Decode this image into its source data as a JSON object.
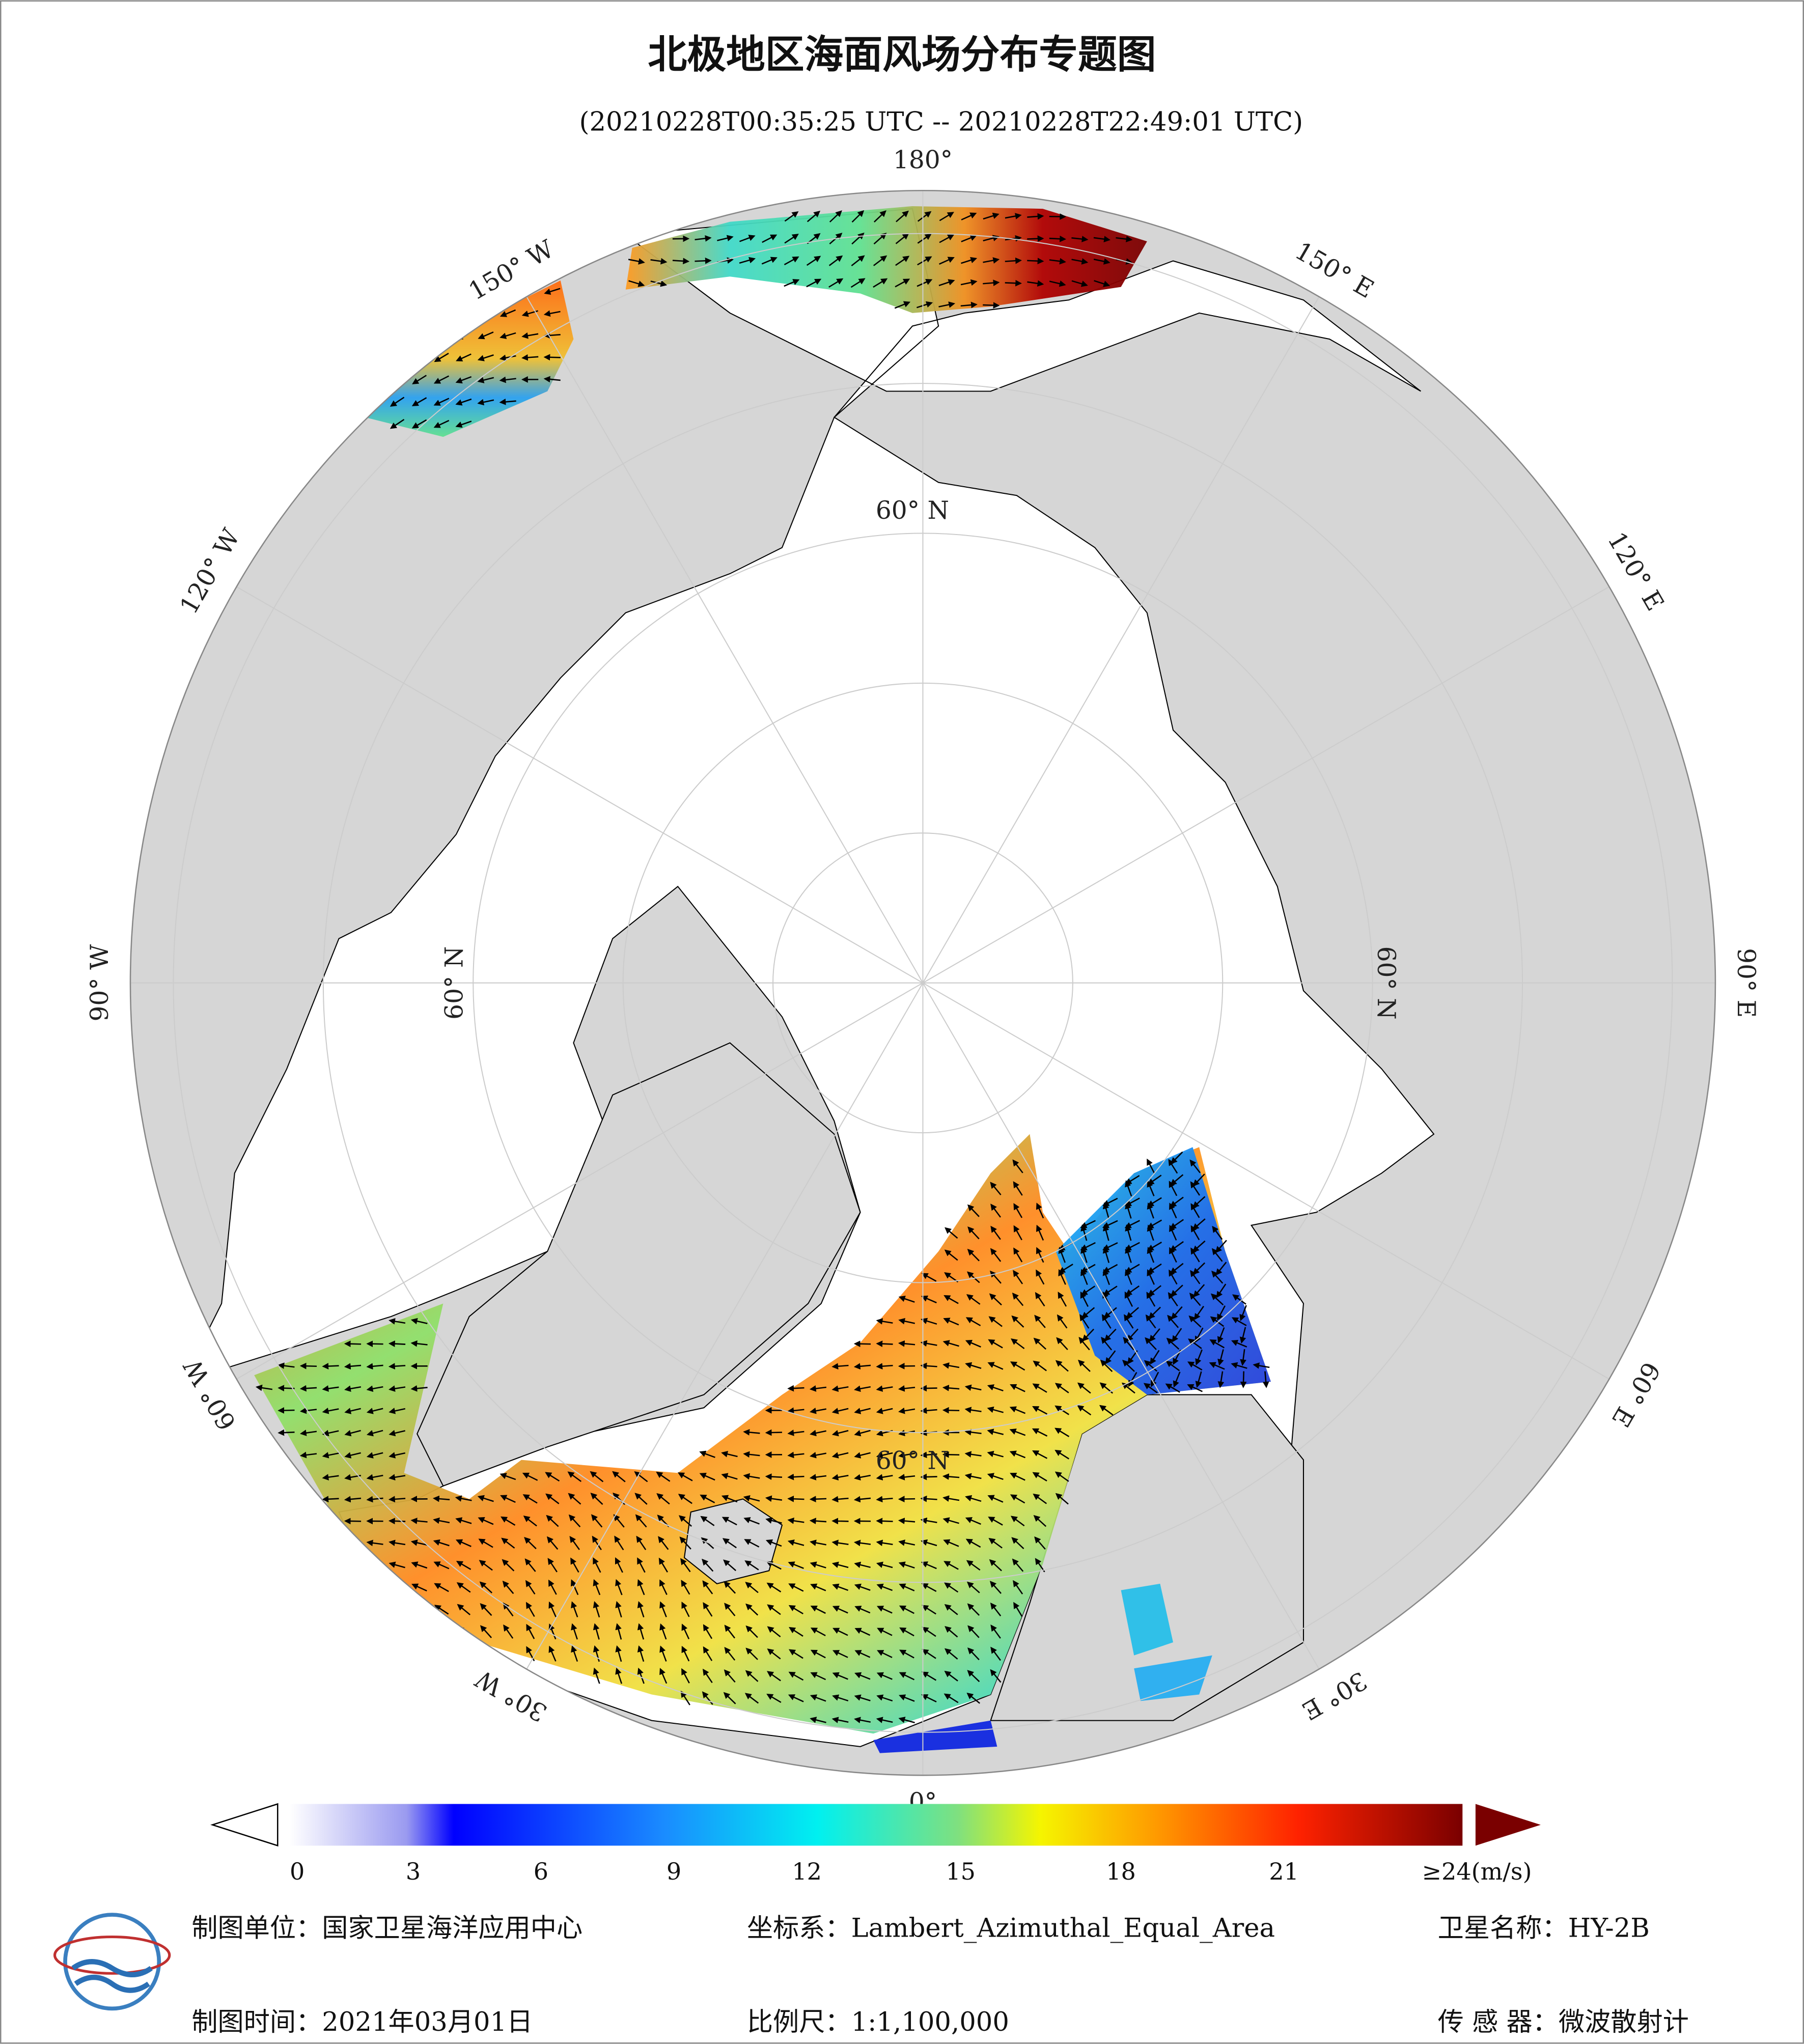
{
  "header": {
    "title": "北极地区海面风场分布专题图",
    "subtitle": "(20210228T00:35:25 UTC -- 20210228T22:49:01 UTC)"
  },
  "graticule": {
    "longitude_labels": [
      "180°",
      "150° E",
      "120° E",
      "90° E",
      "60° E",
      "30° E",
      "0°",
      "30° W",
      "60° W",
      "90° W",
      "120° W",
      "150° W"
    ],
    "latitude_label": "60° N"
  },
  "colorbar": {
    "ticks": [
      "0",
      "3",
      "6",
      "9",
      "12",
      "15",
      "18",
      "21",
      "≥24(m/s)"
    ]
  },
  "footer": {
    "unit": "制图单位：国家卫星海洋应用中心",
    "coordinate_system": "坐标系：Lambert_Azimuthal_Equal_Area",
    "satellite": "卫星名称：HY-2B",
    "date": "制图时间：2021年03月01日",
    "scale": "比例尺：1:1,100,000",
    "sensor": "传 感 器：微波散射计"
  }
}
